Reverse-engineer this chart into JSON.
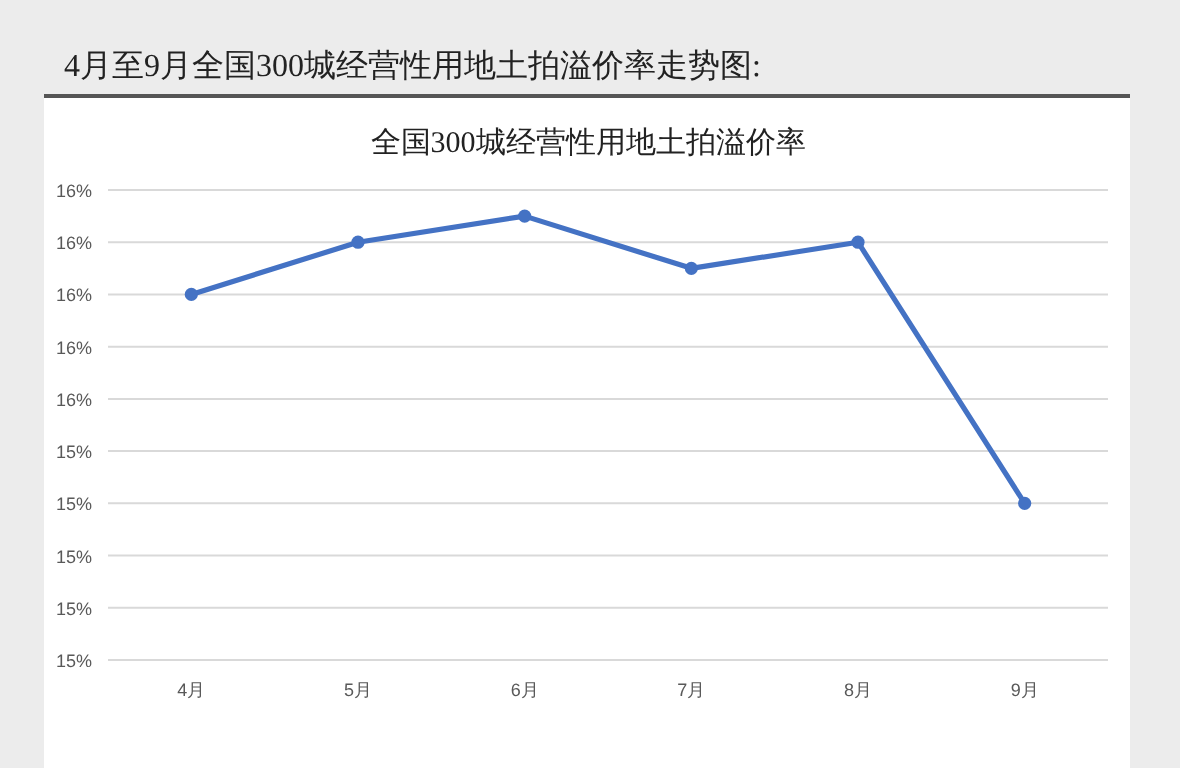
{
  "chart_data": {
    "type": "line",
    "title": "全国300城经营性用地土拍溢价率",
    "annotations": [
      "4月至9月全国300城经营性用地土拍溢价率走势图:"
    ],
    "categories": [
      "4月",
      "5月",
      "6月",
      "7月",
      "8月",
      "9月"
    ],
    "series": [
      {
        "color": "#4472c4",
        "values": [
          15.7,
          15.8,
          15.85,
          15.75,
          15.8,
          15.3
        ]
      }
    ],
    "ylim": [
      15.0,
      15.9
    ],
    "yticks": [
      {
        "value": 15.0,
        "label": "15%"
      },
      {
        "value": 15.1,
        "label": "15%"
      },
      {
        "value": 15.2,
        "label": "15%"
      },
      {
        "value": 15.3,
        "label": "15%"
      },
      {
        "value": 15.4,
        "label": "15%"
      },
      {
        "value": 15.5,
        "label": "16%"
      },
      {
        "value": 15.6,
        "label": "16%"
      },
      {
        "value": 15.7,
        "label": "16%"
      },
      {
        "value": 15.8,
        "label": "16%"
      },
      {
        "value": 15.9,
        "label": "16%"
      }
    ],
    "grid": "y",
    "marker": "circle",
    "line_style": "solid"
  }
}
